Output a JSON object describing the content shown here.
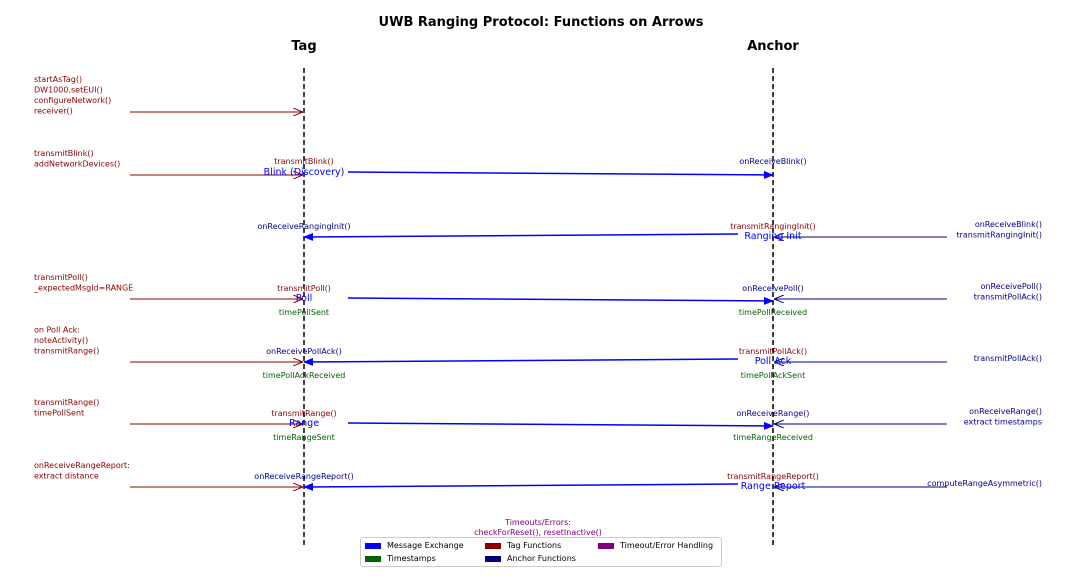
{
  "title": "UWB Ranging Protocol: Functions on Arrows",
  "lanes": {
    "tag": "Tag",
    "anchor": "Anchor"
  },
  "colors": {
    "message": "#0000ff",
    "tag": "#8b0000",
    "anchor": "#00008b",
    "timestamp": "#006400",
    "timeout": "#800080",
    "lifeline": "#000000"
  },
  "left_notes": [
    [
      "startAsTag()",
      "DW1000.setEUI()",
      "configureNetwork()",
      "receiver()"
    ],
    [
      "transmitBlink()",
      "addNetworkDevices()"
    ],
    [
      "transmitPoll()",
      "_expectedMsgId=RANGE"
    ],
    [
      "on Poll Ack:",
      "noteActivity()",
      "transmitRange()"
    ],
    [
      "transmitRange()",
      "timePollSent"
    ],
    [
      "onReceiveRangeReport:",
      "extract distance"
    ]
  ],
  "right_notes": [
    [
      "onReceiveBlink()",
      "transmitRangingInit()"
    ],
    [
      "onReceivePoll()",
      "transmitPollAck()"
    ],
    [
      "transmitPollAck()"
    ],
    [
      "onReceiveRange()",
      "extract timestamps"
    ],
    [
      "computeRangeAsymmetric()"
    ]
  ],
  "messages": [
    {
      "label": "Blink (Discovery)",
      "tag_fn": "transmitBlink()",
      "anchor_fn": "onReceiveBlink()",
      "tag_ts": "",
      "anchor_ts": ""
    },
    {
      "label": "Ranging Init",
      "tag_fn": "onReceiveRangingInit()",
      "anchor_fn": "transmitRangingInit()",
      "tag_ts": "",
      "anchor_ts": ""
    },
    {
      "label": "Poll",
      "tag_fn": "transmitPoll()",
      "anchor_fn": "onReceivePoll()",
      "tag_ts": "timePollSent",
      "anchor_ts": "timePollReceived"
    },
    {
      "label": "Poll Ack",
      "tag_fn": "onReceivePollAck()",
      "anchor_fn": "transmitPollAck()",
      "tag_ts": "timePollAckReceived",
      "anchor_ts": "timePollAckSent"
    },
    {
      "label": "Range",
      "tag_fn": "transmitRange()",
      "anchor_fn": "onReceiveRange()",
      "tag_ts": "timeRangeSent",
      "anchor_ts": "timeRangeReceived"
    },
    {
      "label": "Range Report",
      "tag_fn": "onReceiveRangeReport()",
      "anchor_fn": "transmitRangeReport()",
      "tag_ts": "",
      "anchor_ts": ""
    }
  ],
  "timeout_note": [
    "Timeouts/Errors:",
    "checkForReset(), resetInactive()"
  ],
  "legend": [
    {
      "label": "Message Exchange",
      "color": "#0000ff"
    },
    {
      "label": "Tag Functions",
      "color": "#8b0000"
    },
    {
      "label": "Timeout/Error Handling",
      "color": "#800080"
    },
    {
      "label": "Timestamps",
      "color": "#006400"
    },
    {
      "label": "Anchor Functions",
      "color": "#00008b"
    }
  ]
}
